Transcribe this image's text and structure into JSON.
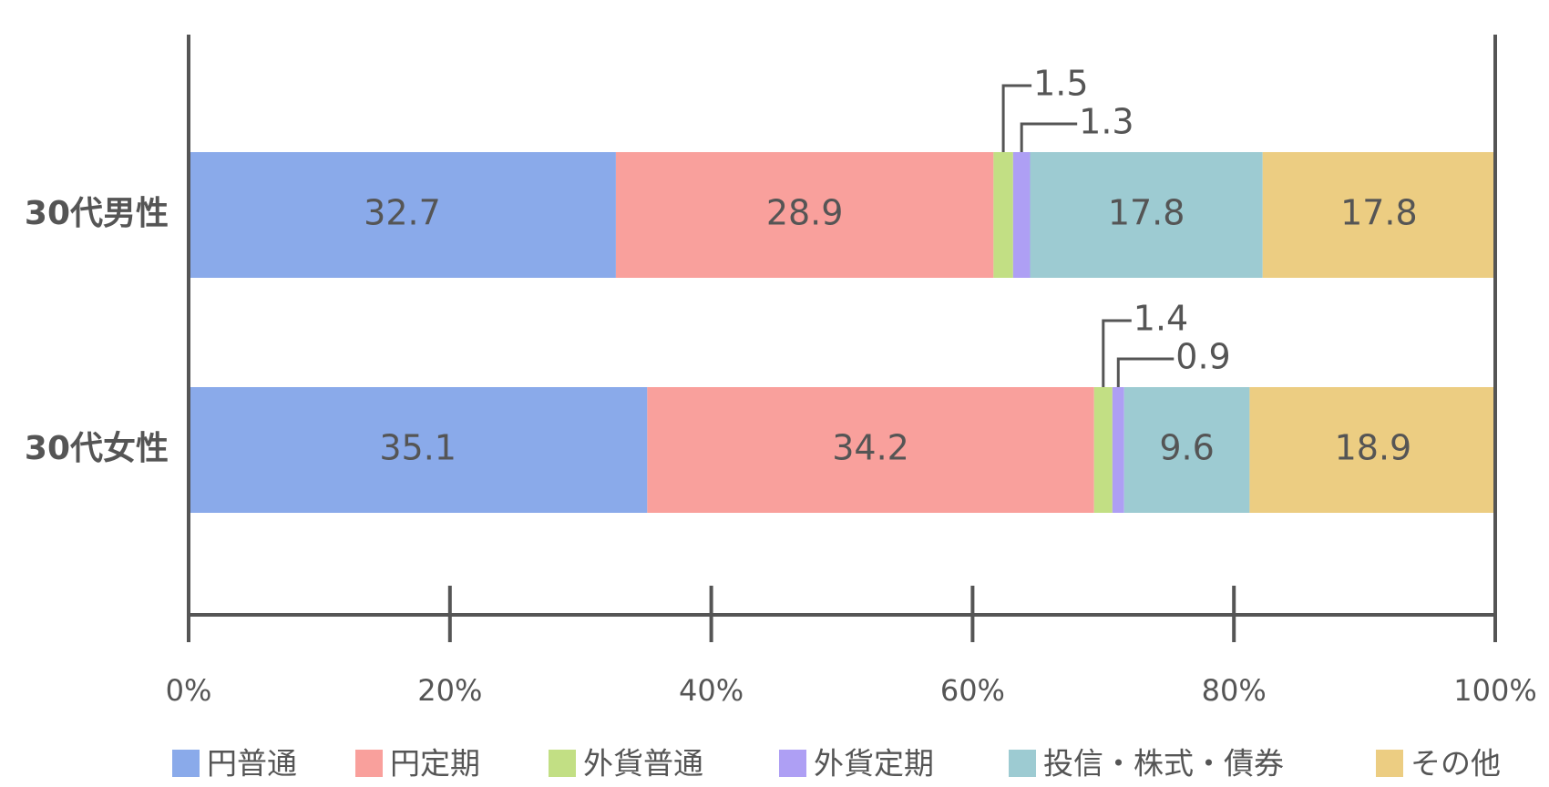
{
  "chart_data": {
    "type": "stacked-bar-horizontal",
    "categories": [
      "30代男性",
      "30代女性"
    ],
    "series": [
      {
        "name": "円普通",
        "color": "#8aaaea",
        "values": [
          32.7,
          35.1
        ]
      },
      {
        "name": "円定期",
        "color": "#f9a09c",
        "values": [
          28.9,
          34.2
        ]
      },
      {
        "name": "外貨普通",
        "color": "#c2df84",
        "values": [
          1.5,
          1.4
        ]
      },
      {
        "name": "外貨定期",
        "color": "#ae9ff4",
        "values": [
          1.3,
          0.9
        ]
      },
      {
        "name": "投信・株式・債券",
        "color": "#9dcbd2",
        "values": [
          17.8,
          9.6
        ]
      },
      {
        "name": "その他",
        "color": "#eccd82",
        "values": [
          17.8,
          18.9
        ]
      }
    ],
    "xlim": [
      0,
      100
    ],
    "xticks": [
      {
        "value": 0,
        "label": "0%"
      },
      {
        "value": 20,
        "label": "20%"
      },
      {
        "value": 40,
        "label": "40%"
      },
      {
        "value": 60,
        "label": "60%"
      },
      {
        "value": 80,
        "label": "80%"
      },
      {
        "value": 100,
        "label": "100%"
      }
    ],
    "legend": "bottom"
  }
}
